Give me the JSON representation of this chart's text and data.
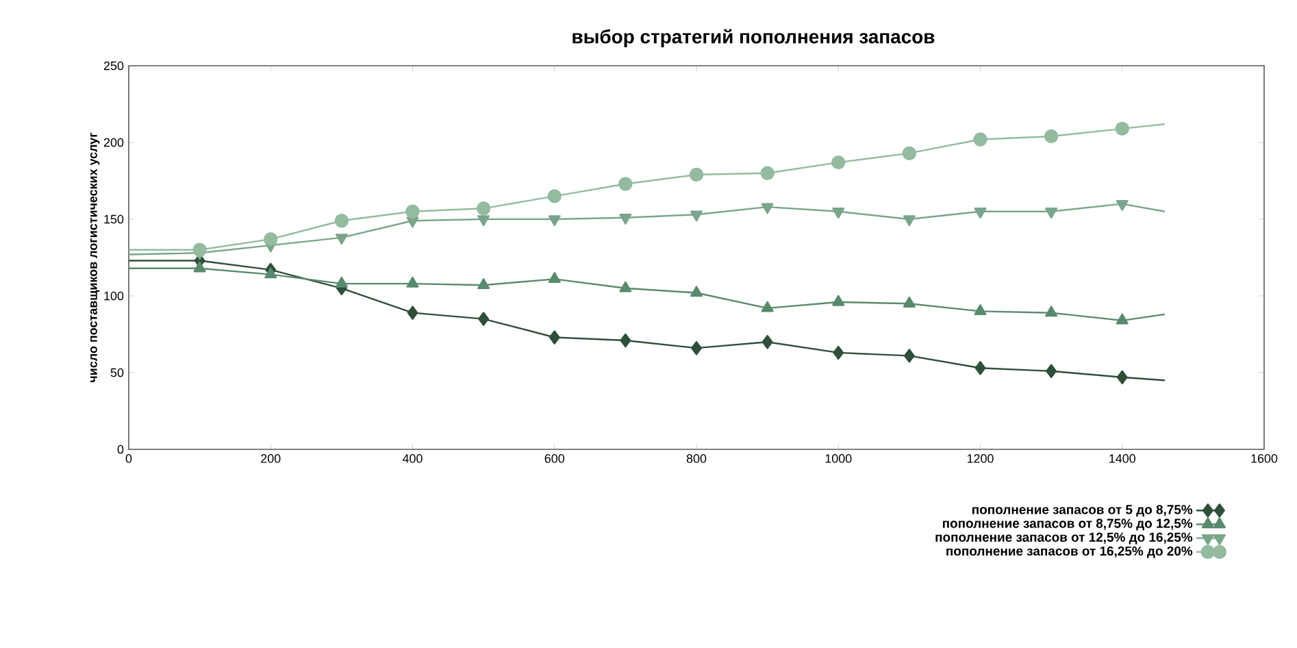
{
  "chart_data": {
    "type": "line",
    "title": "выбор стратегий пополнения запасов",
    "ylabel": "число поставщиков логистических услуг",
    "x": [
      0,
      100,
      200,
      300,
      400,
      500,
      600,
      700,
      800,
      900,
      1000,
      1100,
      1200,
      1300,
      1400,
      1460
    ],
    "series": [
      {
        "name": "пополнение запасов от 5 до 8,75%",
        "color": "#2f4f3a",
        "marker": "diamond",
        "values": [
          123,
          123,
          117,
          105,
          89,
          85,
          73,
          71,
          66,
          70,
          63,
          61,
          53,
          51,
          47,
          45
        ]
      },
      {
        "name": "пополнение запасов от 8,75% до 12,5%",
        "color": "#5a8a6e",
        "marker": "triangle",
        "values": [
          118,
          118,
          114,
          108,
          108,
          107,
          111,
          105,
          102,
          92,
          96,
          95,
          90,
          89,
          84,
          88
        ]
      },
      {
        "name": "пополнение запасов от 12,5% до 16,25%",
        "color": "#7aa58a",
        "marker": "triangle-down",
        "values": [
          127,
          128,
          133,
          138,
          149,
          150,
          150,
          151,
          153,
          158,
          155,
          150,
          155,
          155,
          160,
          155
        ]
      },
      {
        "name": "пополнение запасов от 16,25% до 20%",
        "color": "#94bba0",
        "marker": "circle",
        "values": [
          130,
          130,
          137,
          149,
          155,
          157,
          165,
          173,
          179,
          180,
          187,
          193,
          202,
          204,
          209,
          212
        ]
      }
    ],
    "xlim": [
      0,
      1600
    ],
    "xticks": [
      0,
      200,
      400,
      600,
      800,
      1000,
      1200,
      1400,
      1600
    ],
    "ylim": [
      0,
      250
    ],
    "yticks": [
      0,
      50,
      100,
      150,
      200,
      250
    ],
    "grid": false,
    "legend": "bottom right",
    "line_style": "solid"
  }
}
